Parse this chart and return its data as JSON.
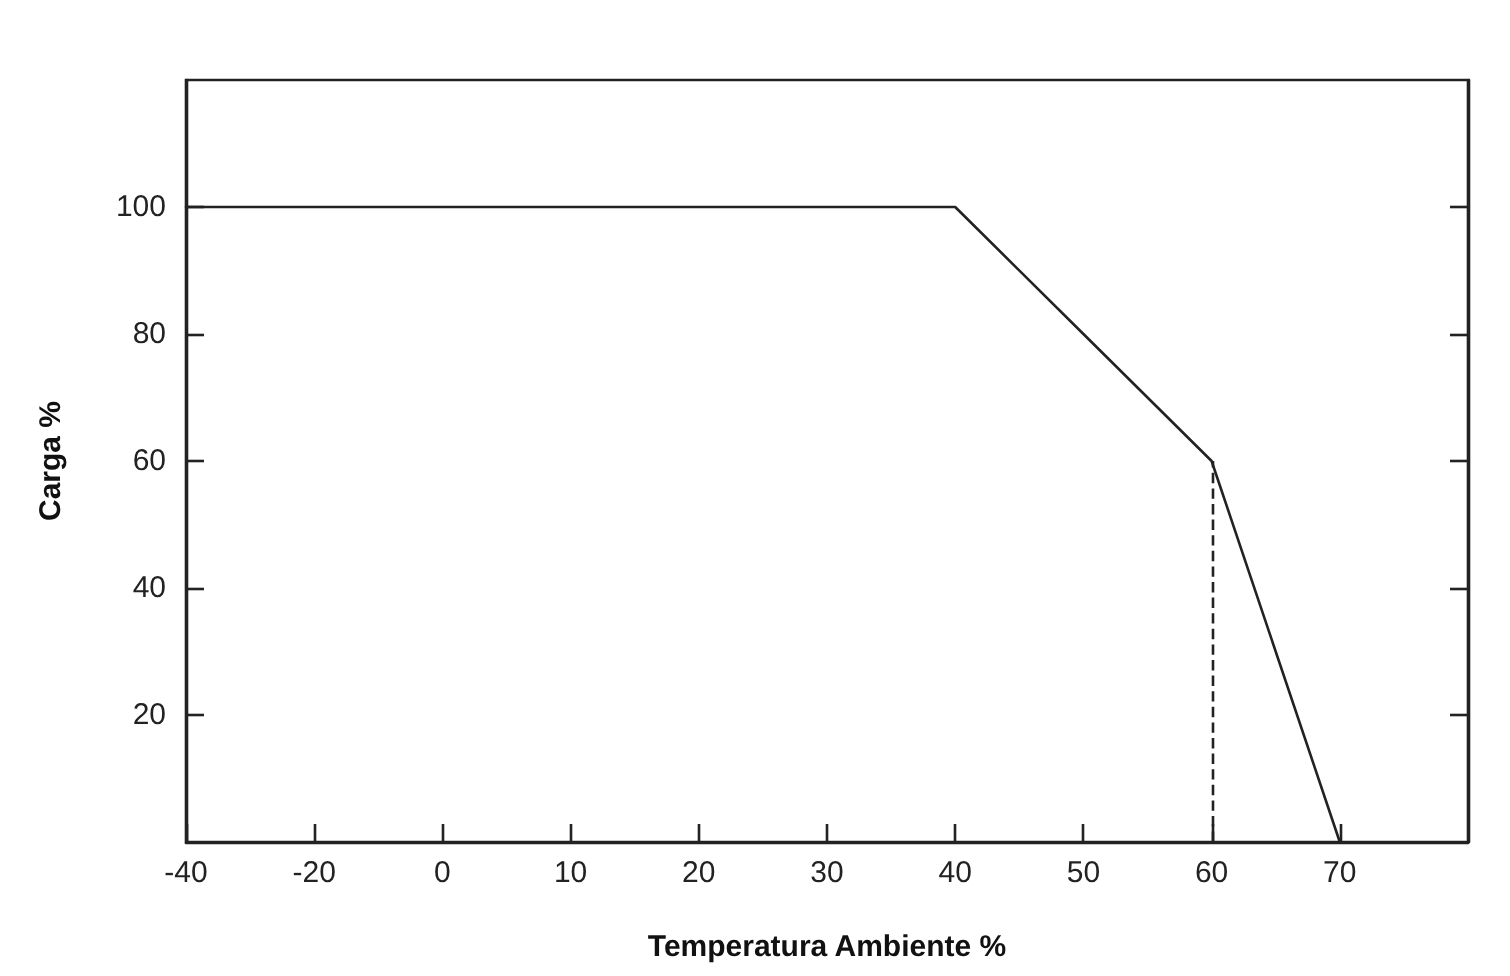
{
  "chart_data": {
    "type": "line",
    "xlabel": "Temperatura Ambiente %",
    "ylabel": "Carga %",
    "categories": [
      "-40",
      "-20",
      "0",
      "10",
      "20",
      "30",
      "40",
      "50",
      "60",
      "70",
      null
    ],
    "series": [
      {
        "color": "#222222",
        "values": [
          100,
          100,
          100,
          100,
          100,
          100,
          100,
          80,
          60,
          0,
          null
        ]
      }
    ],
    "ylim": [
      0,
      120
    ],
    "yticks": [
      20,
      40,
      60,
      80,
      100
    ],
    "ref_lines": [
      {
        "axis": "x",
        "value": "60",
        "line_style": "dashed",
        "color": "#222222"
      }
    ],
    "grid": false,
    "marker": "none",
    "line_style": "solid"
  }
}
